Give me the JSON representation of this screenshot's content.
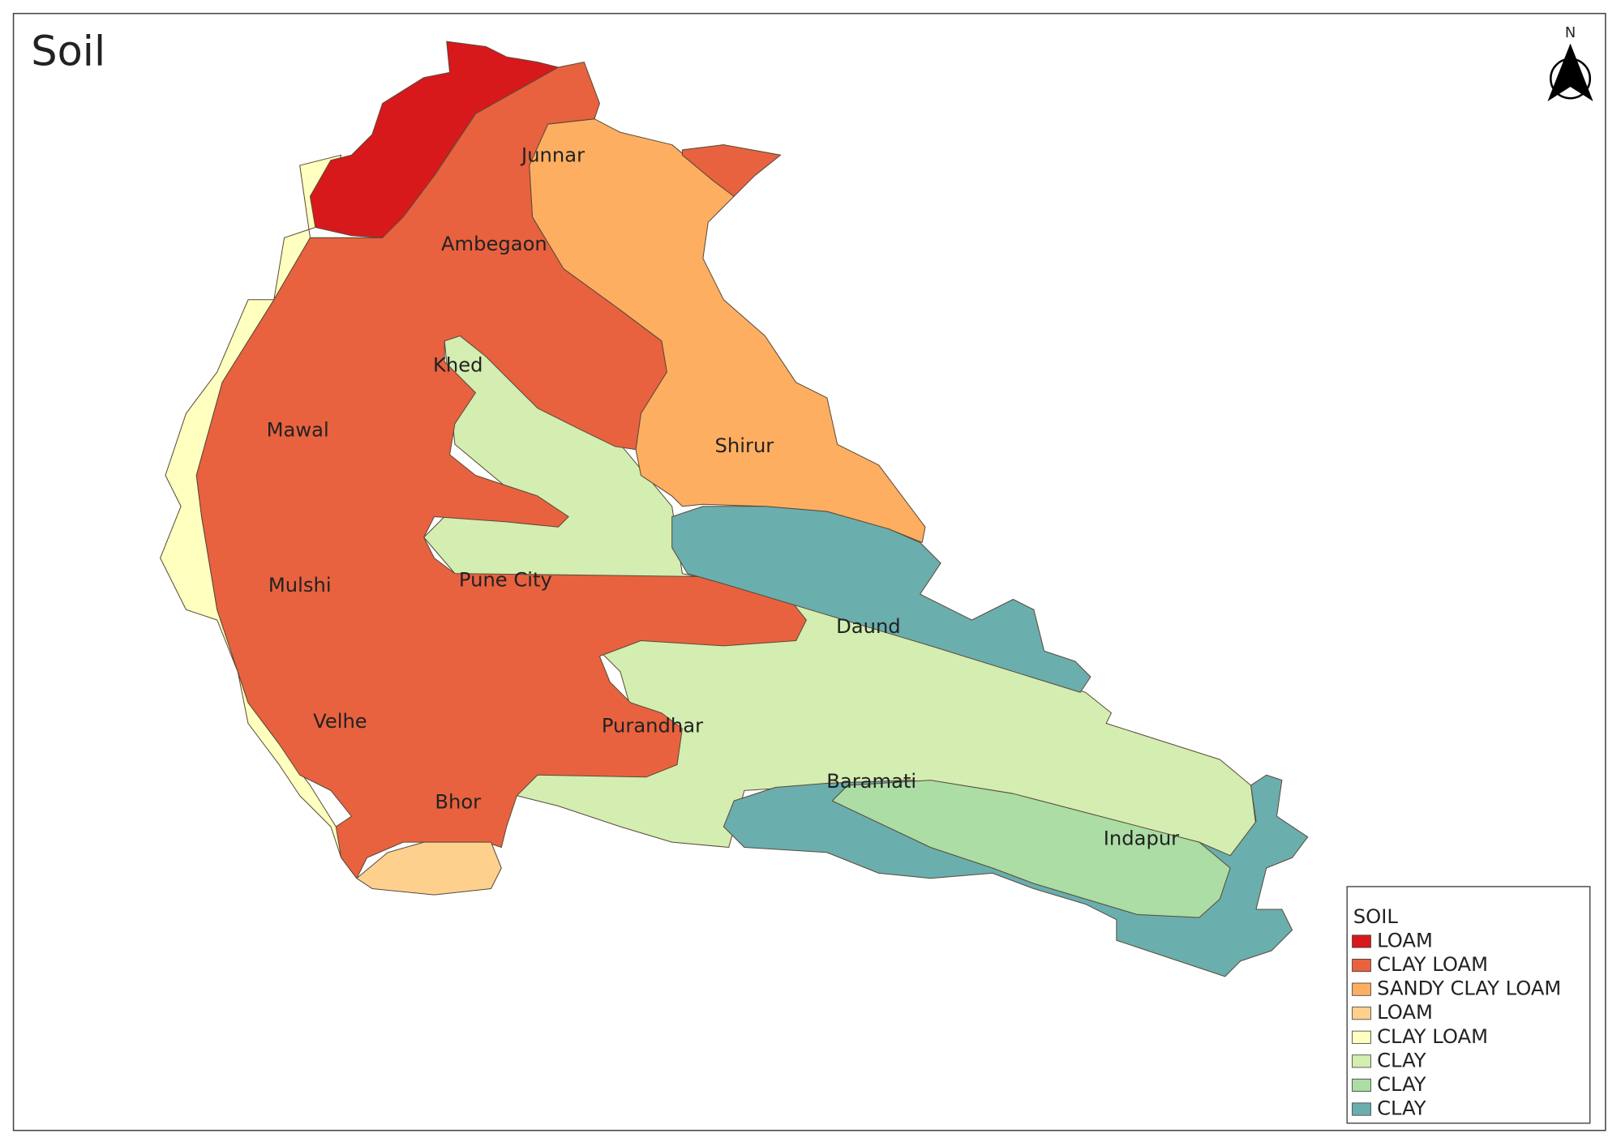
{
  "title": "Soil",
  "north": "N",
  "districts": [
    {
      "label": "Junnar"
    },
    {
      "label": "Ambegaon"
    },
    {
      "label": "Khed"
    },
    {
      "label": "Mawal"
    },
    {
      "label": "Shirur"
    },
    {
      "label": "Mulshi"
    },
    {
      "label": "Pune City"
    },
    {
      "label": "Daund"
    },
    {
      "label": "Velhe"
    },
    {
      "label": "Purandhar"
    },
    {
      "label": "Bhor"
    },
    {
      "label": "Baramati"
    },
    {
      "label": "Indapur"
    }
  ],
  "legend": {
    "title": "SOIL",
    "items": [
      {
        "label": "LOAM",
        "color": "#d7191c"
      },
      {
        "label": "CLAY LOAM",
        "color": "#e8623f"
      },
      {
        "label": "SANDY CLAY LOAM",
        "color": "#fdae61"
      },
      {
        "label": "LOAM",
        "color": "#fdd08e"
      },
      {
        "label": "CLAY LOAM",
        "color": "#ffffc0"
      },
      {
        "label": "CLAY",
        "color": "#d4edb0"
      },
      {
        "label": "CLAY",
        "color": "#abdda4"
      },
      {
        "label": "CLAY",
        "color": "#6aaeae"
      }
    ]
  }
}
